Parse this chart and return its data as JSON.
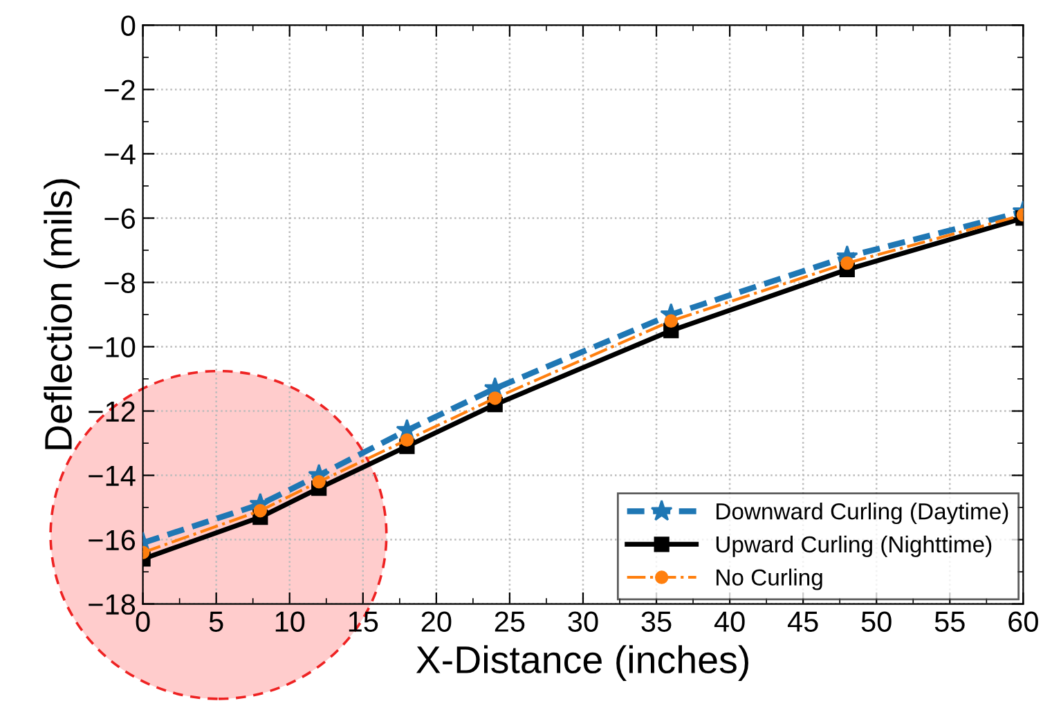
{
  "chart_data": {
    "type": "line",
    "xlabel": "X-Distance (inches)",
    "ylabel": "Deflection (mils)",
    "x": [
      0,
      8,
      12,
      18,
      24,
      36,
      48,
      60
    ],
    "series": [
      {
        "name": "Downward Curling (Daytime)",
        "color": "#1f77b4",
        "marker": "star",
        "line_style": "dashed",
        "values": [
          -16.1,
          -14.9,
          -14.0,
          -12.6,
          -11.3,
          -9.0,
          -7.2,
          -5.8
        ]
      },
      {
        "name": "Upward Curling (Nighttime)",
        "color": "#000000",
        "marker": "square",
        "line_style": "solid",
        "values": [
          -16.6,
          -15.3,
          -14.4,
          -13.1,
          -11.8,
          -9.5,
          -7.6,
          -6.0
        ]
      },
      {
        "name": "No Curling",
        "color": "#ff7f0e",
        "marker": "circle",
        "line_style": "dashdot",
        "values": [
          -16.4,
          -15.1,
          -14.2,
          -12.9,
          -11.6,
          -9.2,
          -7.4,
          -5.9
        ]
      }
    ],
    "xlim": [
      0,
      60
    ],
    "xticks": [
      0,
      5,
      10,
      15,
      20,
      25,
      30,
      35,
      40,
      45,
      50,
      55,
      60
    ],
    "ylim": [
      -18,
      0
    ],
    "yticks": [
      -18,
      -16,
      -14,
      -12,
      -10,
      -8,
      -6,
      -4,
      -2,
      0
    ],
    "grid": true,
    "legend": "bottom right"
  }
}
